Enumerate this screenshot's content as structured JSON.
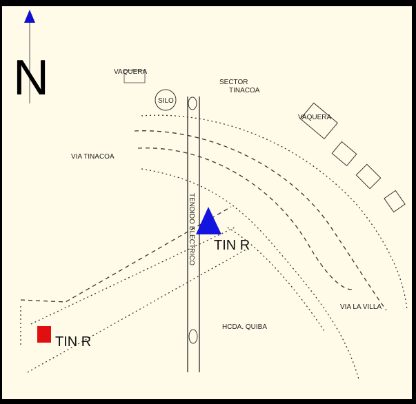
{
  "map": {
    "north": "N",
    "labels": {
      "vaquera_left": "VAQUERA",
      "sector_1": "SECTOR",
      "sector_2": "TINACOA",
      "silo": "SILO",
      "vaquera_right": "VAQUERA",
      "via_tinacoa": "VIA TINACOA",
      "tendido": "TENDIDO ELECTRICO",
      "via_la_villa": "VIA LA VILLA",
      "hacienda": "HCDA. QUIBA"
    },
    "markers": [
      {
        "label": "TIN R"
      },
      {
        "label": "TIN R"
      }
    ]
  }
}
